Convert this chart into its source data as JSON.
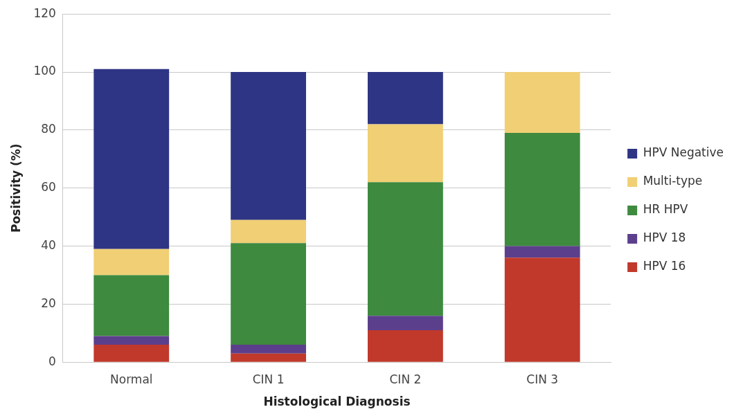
{
  "chart_data": {
    "type": "bar",
    "stacked": true,
    "xlabel": "Histological Diagnosis",
    "ylabel": "Positivity (%)",
    "categories": [
      "Normal",
      "CIN 1",
      "CIN 2",
      "CIN 3"
    ],
    "series": [
      {
        "name": "HPV 16",
        "color": "#c0392b",
        "values": [
          6,
          3,
          11,
          36
        ]
      },
      {
        "name": "HPV 18",
        "color": "#5c3f8c",
        "values": [
          3,
          3,
          5,
          4
        ]
      },
      {
        "name": "HR HPV",
        "color": "#3e8a3f",
        "values": [
          21,
          35,
          46,
          39
        ]
      },
      {
        "name": "Multi-type",
        "color": "#f0cf75",
        "values": [
          9,
          8,
          20,
          21
        ]
      },
      {
        "name": "HPV Negative",
        "color": "#2e3584",
        "values": [
          62,
          51,
          18,
          0
        ]
      }
    ],
    "ylim": [
      0,
      120
    ],
    "yticks": [
      0,
      20,
      40,
      60,
      80,
      100,
      120
    ],
    "grid": "y",
    "legend": "right"
  }
}
